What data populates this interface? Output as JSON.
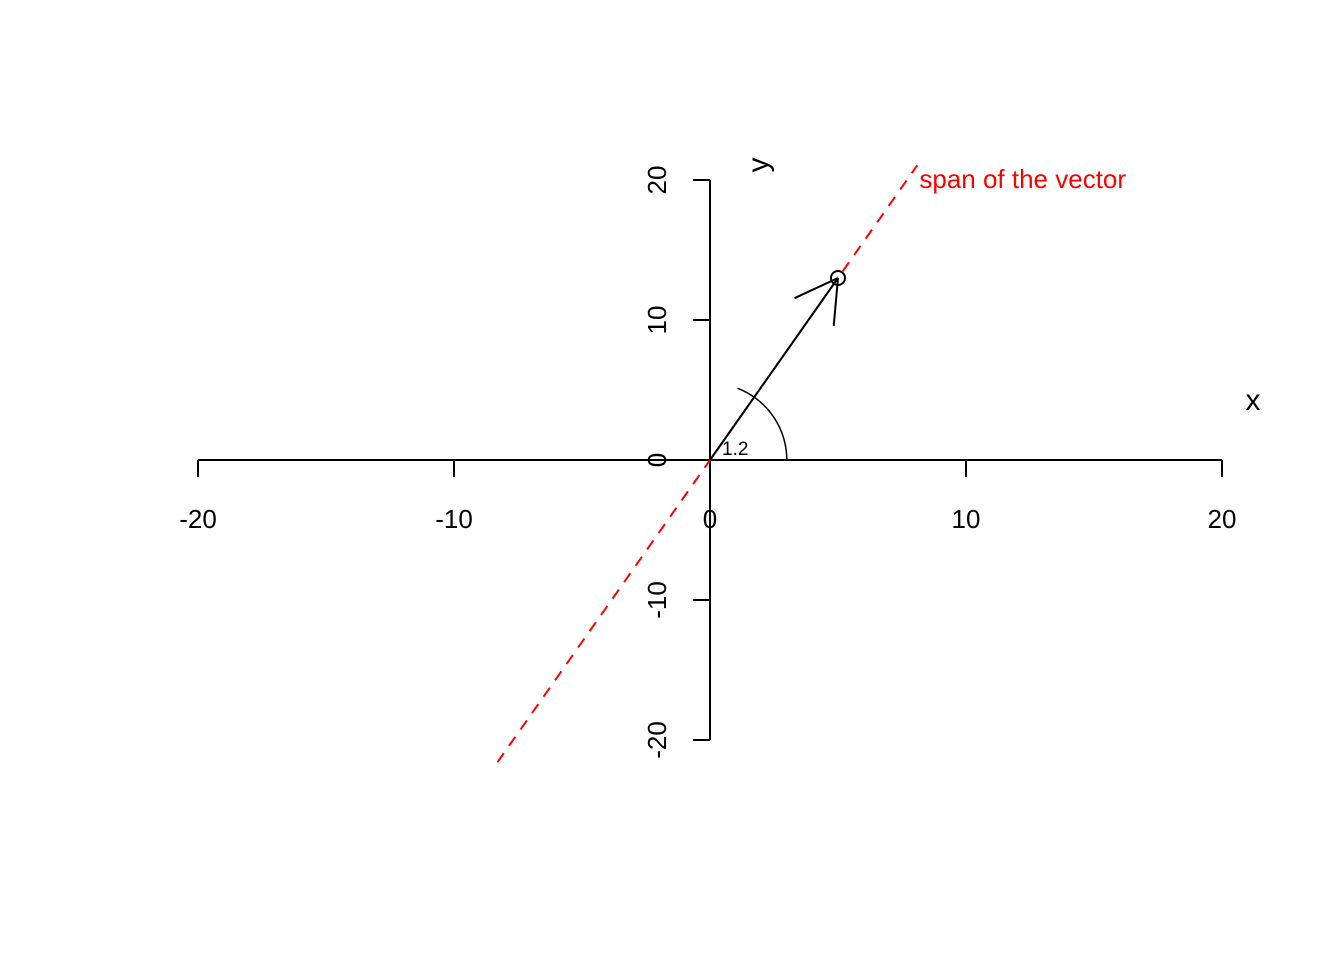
{
  "chart_data": {
    "type": "line",
    "title": "",
    "xlabel": "x",
    "ylabel": "y",
    "xlim": [
      -20,
      20
    ],
    "ylim": [
      -20,
      20
    ],
    "x_ticks": [
      -20,
      -10,
      0,
      10,
      20
    ],
    "y_ticks": [
      -20,
      -10,
      0,
      10,
      20
    ],
    "grid": false,
    "vector": {
      "x": 5,
      "y": 13
    },
    "angle_label": "1.2",
    "span": {
      "label": "span of the vector",
      "color": "#ff0000",
      "style": "dashed",
      "x_from": -8.3,
      "x_to": 8.1
    },
    "colors": {
      "axis": "#000000",
      "vector": "#000000",
      "span": "#ff0000"
    }
  }
}
